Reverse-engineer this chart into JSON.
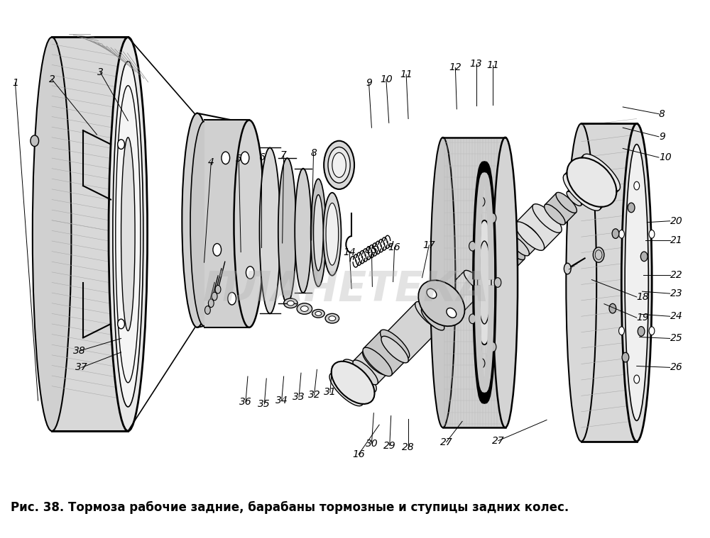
{
  "bg_color": "#ffffff",
  "caption": "Рис. 38. Тормоза рабочие задние, барабаны тормозные и ступицы задних колес.",
  "caption_fontsize": 12,
  "watermark_text": "ПЛАНЕТЕКА",
  "watermark_color": "#b0b0b0",
  "watermark_alpha": 0.35,
  "watermark_fontsize": 42,
  "label_fontsize": 10,
  "lc": "#000000"
}
